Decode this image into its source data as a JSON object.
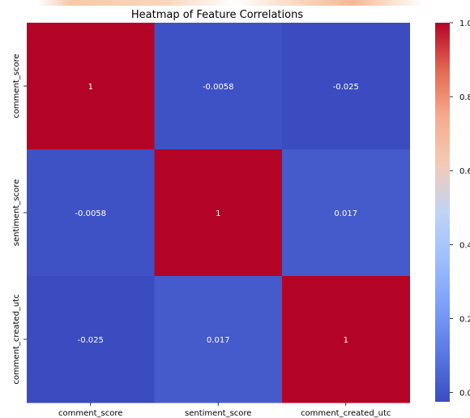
{
  "chart_data": {
    "type": "heatmap",
    "title": "Heatmap of Feature Correlations",
    "xlabel": "",
    "ylabel": "",
    "x_categories": [
      "comment_score",
      "sentiment_score",
      "comment_created_utc"
    ],
    "y_categories": [
      "comment_score",
      "sentiment_score",
      "comment_created_utc"
    ],
    "values": [
      [
        1,
        -0.0058,
        -0.025
      ],
      [
        -0.0058,
        1,
        0.017
      ],
      [
        -0.025,
        0.017,
        1
      ]
    ],
    "annotations": [
      [
        "1",
        "-0.0058",
        "-0.025"
      ],
      [
        "-0.0058",
        "1",
        "0.017"
      ],
      [
        "-0.025",
        "0.017",
        "1"
      ]
    ],
    "colormap": "coolwarm",
    "colorbar": {
      "range": [
        -0.025,
        1
      ],
      "ticks": [
        {
          "value": 0.0,
          "label": "0.0"
        },
        {
          "value": 0.2,
          "label": "0.2"
        },
        {
          "value": 0.4,
          "label": "0.4"
        },
        {
          "value": 0.6,
          "label": "0.6"
        },
        {
          "value": 0.8,
          "label": "0.8"
        },
        {
          "value": 1.0,
          "label": "1.0"
        }
      ]
    }
  }
}
